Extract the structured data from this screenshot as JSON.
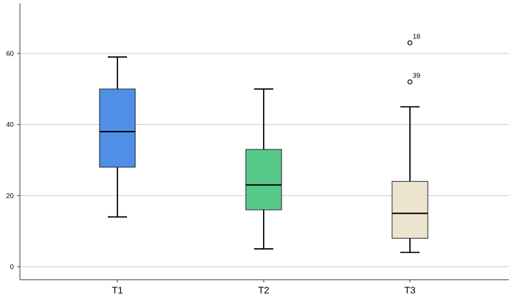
{
  "chart_data": {
    "type": "boxplot",
    "title": "",
    "xlabel": "",
    "ylabel": "",
    "ylim": [
      -4,
      73
    ],
    "yticks": [
      0,
      20,
      40,
      60
    ],
    "grid": true,
    "categories": [
      "T1",
      "T2",
      "T3"
    ],
    "boxes": [
      {
        "category": "T1",
        "min": 14,
        "q1": 28,
        "median": 38,
        "q3": 50,
        "max": 59,
        "color": "#4f8fe6",
        "outliers": []
      },
      {
        "category": "T2",
        "min": 5,
        "q1": 16,
        "median": 23,
        "q3": 33,
        "max": 50,
        "color": "#56c98a",
        "outliers": []
      },
      {
        "category": "T3",
        "min": 4,
        "q1": 8,
        "median": 15,
        "q3": 24,
        "max": 45,
        "color": "#ede4d0",
        "outliers": [
          {
            "value": 63,
            "label": "18"
          },
          {
            "value": 52,
            "label": "39"
          }
        ]
      }
    ]
  }
}
